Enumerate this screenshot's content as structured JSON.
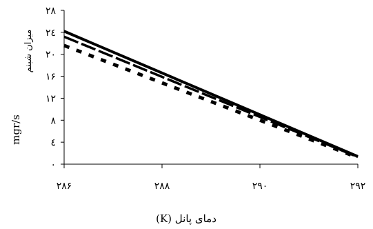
{
  "chart_data": {
    "type": "line",
    "x": [
      286,
      292
    ],
    "xticks": [
      286,
      288,
      290,
      292
    ],
    "xtick_labels": [
      "۲۸۶",
      "۲۸۸",
      "۲۹۰",
      "۲۹۲"
    ],
    "yticks": [
      0,
      4,
      8,
      12,
      16,
      20,
      24,
      28
    ],
    "ytick_labels": [
      "۰",
      "٤",
      "۸",
      "۱۲",
      "۱۶",
      "۲۰",
      "۲٤",
      "۲۸"
    ],
    "xlim": [
      286,
      292
    ],
    "ylim": [
      0,
      28
    ],
    "xlabel": "(K) دمای پانل",
    "ylabel_unit": "mgr/s",
    "ylabel_text": "میزان شبنم",
    "grid": false,
    "legend": "none",
    "series": [
      {
        "values": [
          24.2,
          1.4
        ],
        "style": "solid",
        "color": "#000000"
      },
      {
        "values": [
          23.2,
          1.3
        ],
        "style": "dash",
        "color": "#000000"
      },
      {
        "values": [
          21.6,
          1.2
        ],
        "style": "dot",
        "color": "#000000"
      }
    ]
  }
}
